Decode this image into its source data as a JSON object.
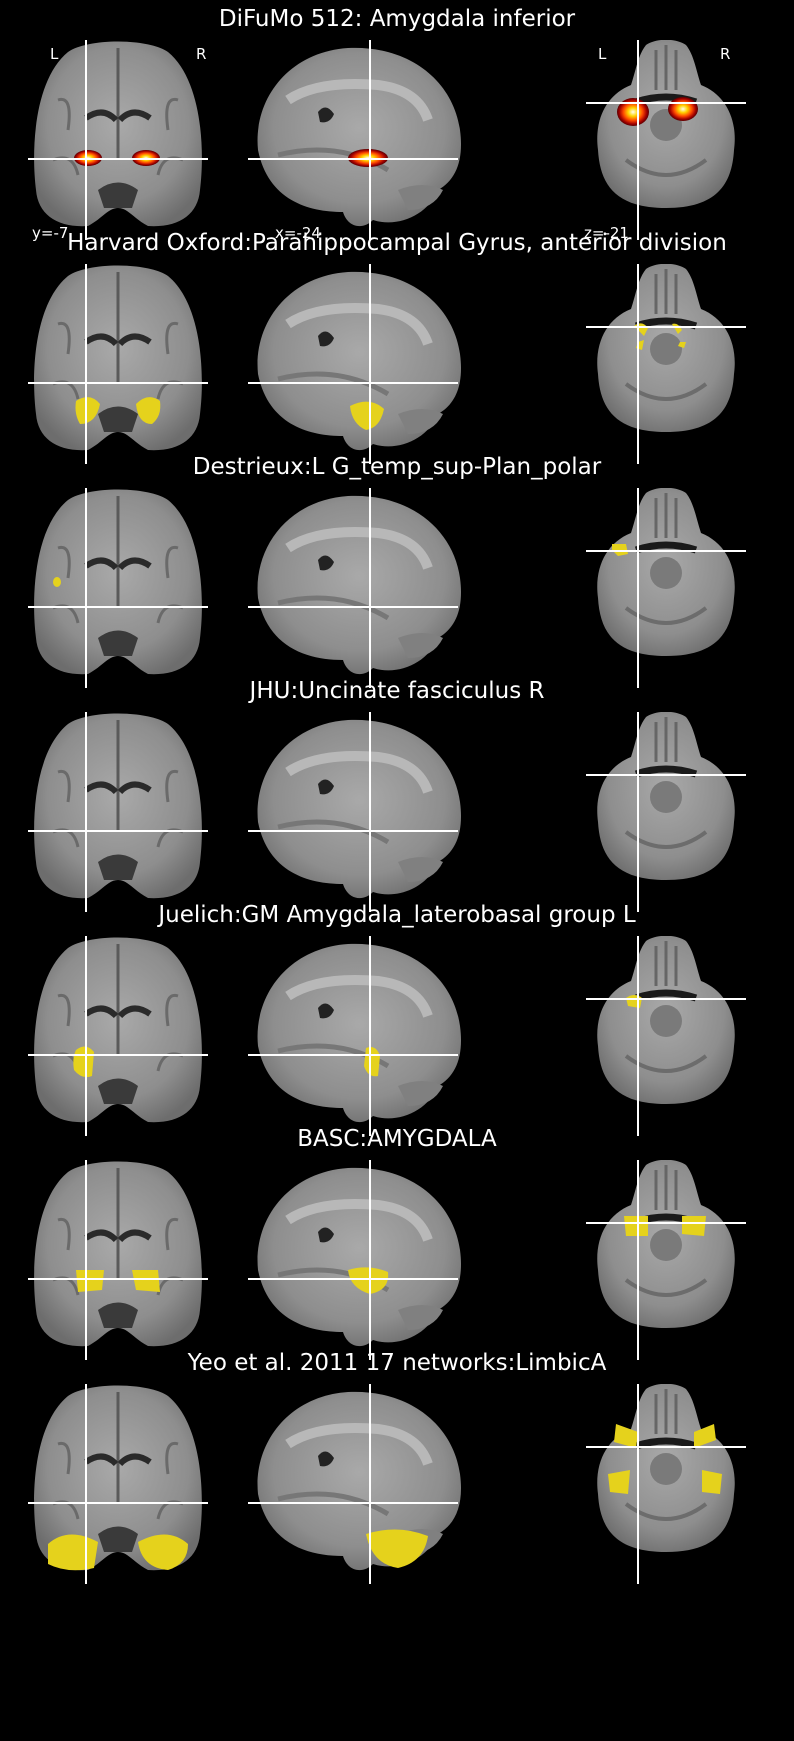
{
  "figure": {
    "colors": {
      "background": "#000000",
      "crosshair": "#ffffff",
      "atlas_overlay": "#e5d21c",
      "probabilistic_overlay": [
        "#8b0000",
        "#ff3300",
        "#ffa500",
        "#ffffcc"
      ]
    },
    "orientation": {
      "left": "L",
      "right": "R"
    },
    "cut_labels": {
      "coronal": "y=-7",
      "sagittal": "x=-24",
      "axial": "z=-21"
    },
    "panels": [
      {
        "title": "DiFuMo 512: Amygdala inferior",
        "overlay": "heat"
      },
      {
        "title": "Harvard Oxford:Parahippocampal Gyrus, anterior division",
        "overlay": "yellow"
      },
      {
        "title": "Destrieux:L G_temp_sup-Plan_polar",
        "overlay": "yellow"
      },
      {
        "title": "JHU:Uncinate fasciculus R",
        "overlay": "none"
      },
      {
        "title": "Juelich:GM Amygdala_laterobasal group L",
        "overlay": "yellow"
      },
      {
        "title": "BASC:AMYGDALA",
        "overlay": "yellow"
      },
      {
        "title": "Yeo et al. 2011 17 networks:LimbicA",
        "overlay": "yellow"
      }
    ]
  }
}
